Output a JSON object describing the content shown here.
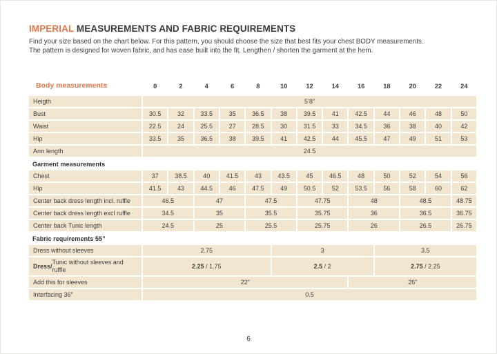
{
  "page": {
    "title_accent": "IMPERIAL",
    "title_rest": " MEASUREMENTS AND FABRIC REQUIREMENTS",
    "intro_line1": "Find your size based on the chart below. For this pattern, you should choose the size that best fits your chest BODY measurements.",
    "intro_line2": "The pattern is designed for woven fabric, and has ease built into the fit. Lengthen / shorten the garment at the hem.",
    "page_number": "6"
  },
  "colors": {
    "accent": "#E0784E",
    "row_background": "#F3E6D0",
    "text": "#3D3D3D"
  },
  "table": {
    "header_label": "Body measurements",
    "sizes": [
      "0",
      "2",
      "4",
      "6",
      "8",
      "10",
      "12",
      "14",
      "16",
      "18",
      "20",
      "22",
      "24"
    ],
    "rows": [
      {
        "label": "Heigth",
        "cells": [
          {
            "v": "5’8”",
            "span": 13
          }
        ]
      },
      {
        "label": "Bust",
        "cells": [
          {
            "v": "30.5",
            "span": 1
          },
          {
            "v": "32",
            "span": 1
          },
          {
            "v": "33.5",
            "span": 1
          },
          {
            "v": "35",
            "span": 1
          },
          {
            "v": "36.5",
            "span": 1
          },
          {
            "v": "38",
            "span": 1
          },
          {
            "v": "39.5",
            "span": 1
          },
          {
            "v": "41",
            "span": 1
          },
          {
            "v": "42.5",
            "span": 1
          },
          {
            "v": "44",
            "span": 1
          },
          {
            "v": "46",
            "span": 1
          },
          {
            "v": "48",
            "span": 1
          },
          {
            "v": "50",
            "span": 1
          }
        ]
      },
      {
        "label": "Waist",
        "cells": [
          {
            "v": "22.5",
            "span": 1
          },
          {
            "v": "24",
            "span": 1
          },
          {
            "v": "25.5",
            "span": 1
          },
          {
            "v": "27",
            "span": 1
          },
          {
            "v": "28.5",
            "span": 1
          },
          {
            "v": "30",
            "span": 1
          },
          {
            "v": "31.5",
            "span": 1
          },
          {
            "v": "33",
            "span": 1
          },
          {
            "v": "34.5",
            "span": 1
          },
          {
            "v": "36",
            "span": 1
          },
          {
            "v": "38",
            "span": 1
          },
          {
            "v": "40",
            "span": 1
          },
          {
            "v": "42",
            "span": 1
          }
        ]
      },
      {
        "label": "Hip",
        "cells": [
          {
            "v": "33.5",
            "span": 1
          },
          {
            "v": "35",
            "span": 1
          },
          {
            "v": "36.5",
            "span": 1
          },
          {
            "v": "38",
            "span": 1
          },
          {
            "v": "39.5",
            "span": 1
          },
          {
            "v": "41",
            "span": 1
          },
          {
            "v": "42.5",
            "span": 1
          },
          {
            "v": "44",
            "span": 1
          },
          {
            "v": "45.5",
            "span": 1
          },
          {
            "v": "47",
            "span": 1
          },
          {
            "v": "49",
            "span": 1
          },
          {
            "v": "51",
            "span": 1
          },
          {
            "v": "53",
            "span": 1
          }
        ]
      },
      {
        "label": "Arm length",
        "cells": [
          {
            "v": "24.5",
            "span": 13
          }
        ]
      },
      {
        "section": true,
        "label": "Garment measurements"
      },
      {
        "label": "Chest",
        "cells": [
          {
            "v": "37",
            "span": 1
          },
          {
            "v": "38.5",
            "span": 1
          },
          {
            "v": "40",
            "span": 1
          },
          {
            "v": "41.5",
            "span": 1
          },
          {
            "v": "43",
            "span": 1
          },
          {
            "v": "43.5",
            "span": 1
          },
          {
            "v": "45",
            "span": 1
          },
          {
            "v": "46.5",
            "span": 1
          },
          {
            "v": "48",
            "span": 1
          },
          {
            "v": "50",
            "span": 1
          },
          {
            "v": "52",
            "span": 1
          },
          {
            "v": "54",
            "span": 1
          },
          {
            "v": "56",
            "span": 1
          }
        ]
      },
      {
        "label": "Hip",
        "cells": [
          {
            "v": "41.5",
            "span": 1
          },
          {
            "v": "43",
            "span": 1
          },
          {
            "v": "44.5",
            "span": 1
          },
          {
            "v": "46",
            "span": 1
          },
          {
            "v": "47.5",
            "span": 1
          },
          {
            "v": "49",
            "span": 1
          },
          {
            "v": "50.5",
            "span": 1
          },
          {
            "v": "52",
            "span": 1
          },
          {
            "v": "53.5",
            "span": 1
          },
          {
            "v": "56",
            "span": 1
          },
          {
            "v": "58",
            "span": 1
          },
          {
            "v": "60",
            "span": 1
          },
          {
            "v": "62",
            "span": 1
          }
        ]
      },
      {
        "label": "Center back dress length incl. ruffle",
        "cells": [
          {
            "v": "46.5",
            "span": 2
          },
          {
            "v": "47",
            "span": 2
          },
          {
            "v": "47.5",
            "span": 2
          },
          {
            "v": "47.75",
            "span": 2
          },
          {
            "v": "48",
            "span": 2
          },
          {
            "v": "48.5",
            "span": 2
          },
          {
            "v": "48.75",
            "span": 1
          }
        ]
      },
      {
        "label": "Center back dress length excl ruffle",
        "cells": [
          {
            "v": "34.5",
            "span": 2
          },
          {
            "v": "35",
            "span": 2
          },
          {
            "v": "35.5",
            "span": 2
          },
          {
            "v": "35.75",
            "span": 2
          },
          {
            "v": "36",
            "span": 2
          },
          {
            "v": "36.5",
            "span": 2
          },
          {
            "v": "36.75",
            "span": 1
          }
        ]
      },
      {
        "label": "Center back Tunic length",
        "cells": [
          {
            "v": "24.5",
            "span": 2
          },
          {
            "v": "25",
            "span": 2
          },
          {
            "v": "25.5",
            "span": 2
          },
          {
            "v": "25.75",
            "span": 2
          },
          {
            "v": "26",
            "span": 2
          },
          {
            "v": "26.5",
            "span": 2
          },
          {
            "v": "26.75",
            "span": 1
          }
        ]
      },
      {
        "section": true,
        "label": "Fabric requirements 55”"
      },
      {
        "label": "Dress without sleeves",
        "cells": [
          {
            "v": "2.75",
            "span": 5
          },
          {
            "v": "3",
            "span": 4
          },
          {
            "v": "3.5",
            "span": 4
          }
        ]
      },
      {
        "label_bold": "Dress/",
        "label": " Tunic without sleeves and ruffle",
        "cells": [
          {
            "vb": "2.25",
            "v": " / 1.75",
            "span": 5
          },
          {
            "vb": "2.5",
            "v": " / 2",
            "span": 4
          },
          {
            "vb": "2.75",
            "v": " / 2.25",
            "span": 4
          }
        ]
      },
      {
        "label": "Add this for sleeves",
        "cells": [
          {
            "v": "22”",
            "span": 8
          },
          {
            "v": "26”",
            "span": 5
          }
        ]
      },
      {
        "label": "Interfacing 36”",
        "cells": [
          {
            "v": "0.5",
            "span": 13
          }
        ]
      }
    ]
  }
}
